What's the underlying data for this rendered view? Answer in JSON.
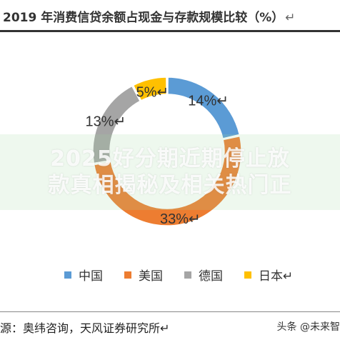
{
  "title": "2019 年消费信贷余额占现金与存款规模比较（%）",
  "return_mark": "↵",
  "chart_data": {
    "type": "pie",
    "style": "donut",
    "categories": [
      "中国",
      "美国",
      "德国",
      "日本"
    ],
    "values": [
      14,
      33,
      13,
      5
    ],
    "value_labels": [
      "14%↵",
      "33%↵",
      "13%↵",
      "5%↵"
    ],
    "colors": [
      "#5B9BD5",
      "#ED7D31",
      "#A5A5A5",
      "#FFC000"
    ],
    "legend_position": "bottom"
  },
  "legend": {
    "items": [
      {
        "label": "中国",
        "color": "#5B9BD5"
      },
      {
        "label": "美国",
        "color": "#ED7D31"
      },
      {
        "label": "德国",
        "color": "#A5A5A5"
      },
      {
        "label": "日本↵",
        "color": "#FFC000"
      }
    ]
  },
  "watermark": {
    "line1": "2025好分期近期停止放",
    "line2": "款真相揭秘及相关热门正"
  },
  "source": "源：奥纬咨询，天风证券研究所↵",
  "attribution": "头条 @未来智"
}
